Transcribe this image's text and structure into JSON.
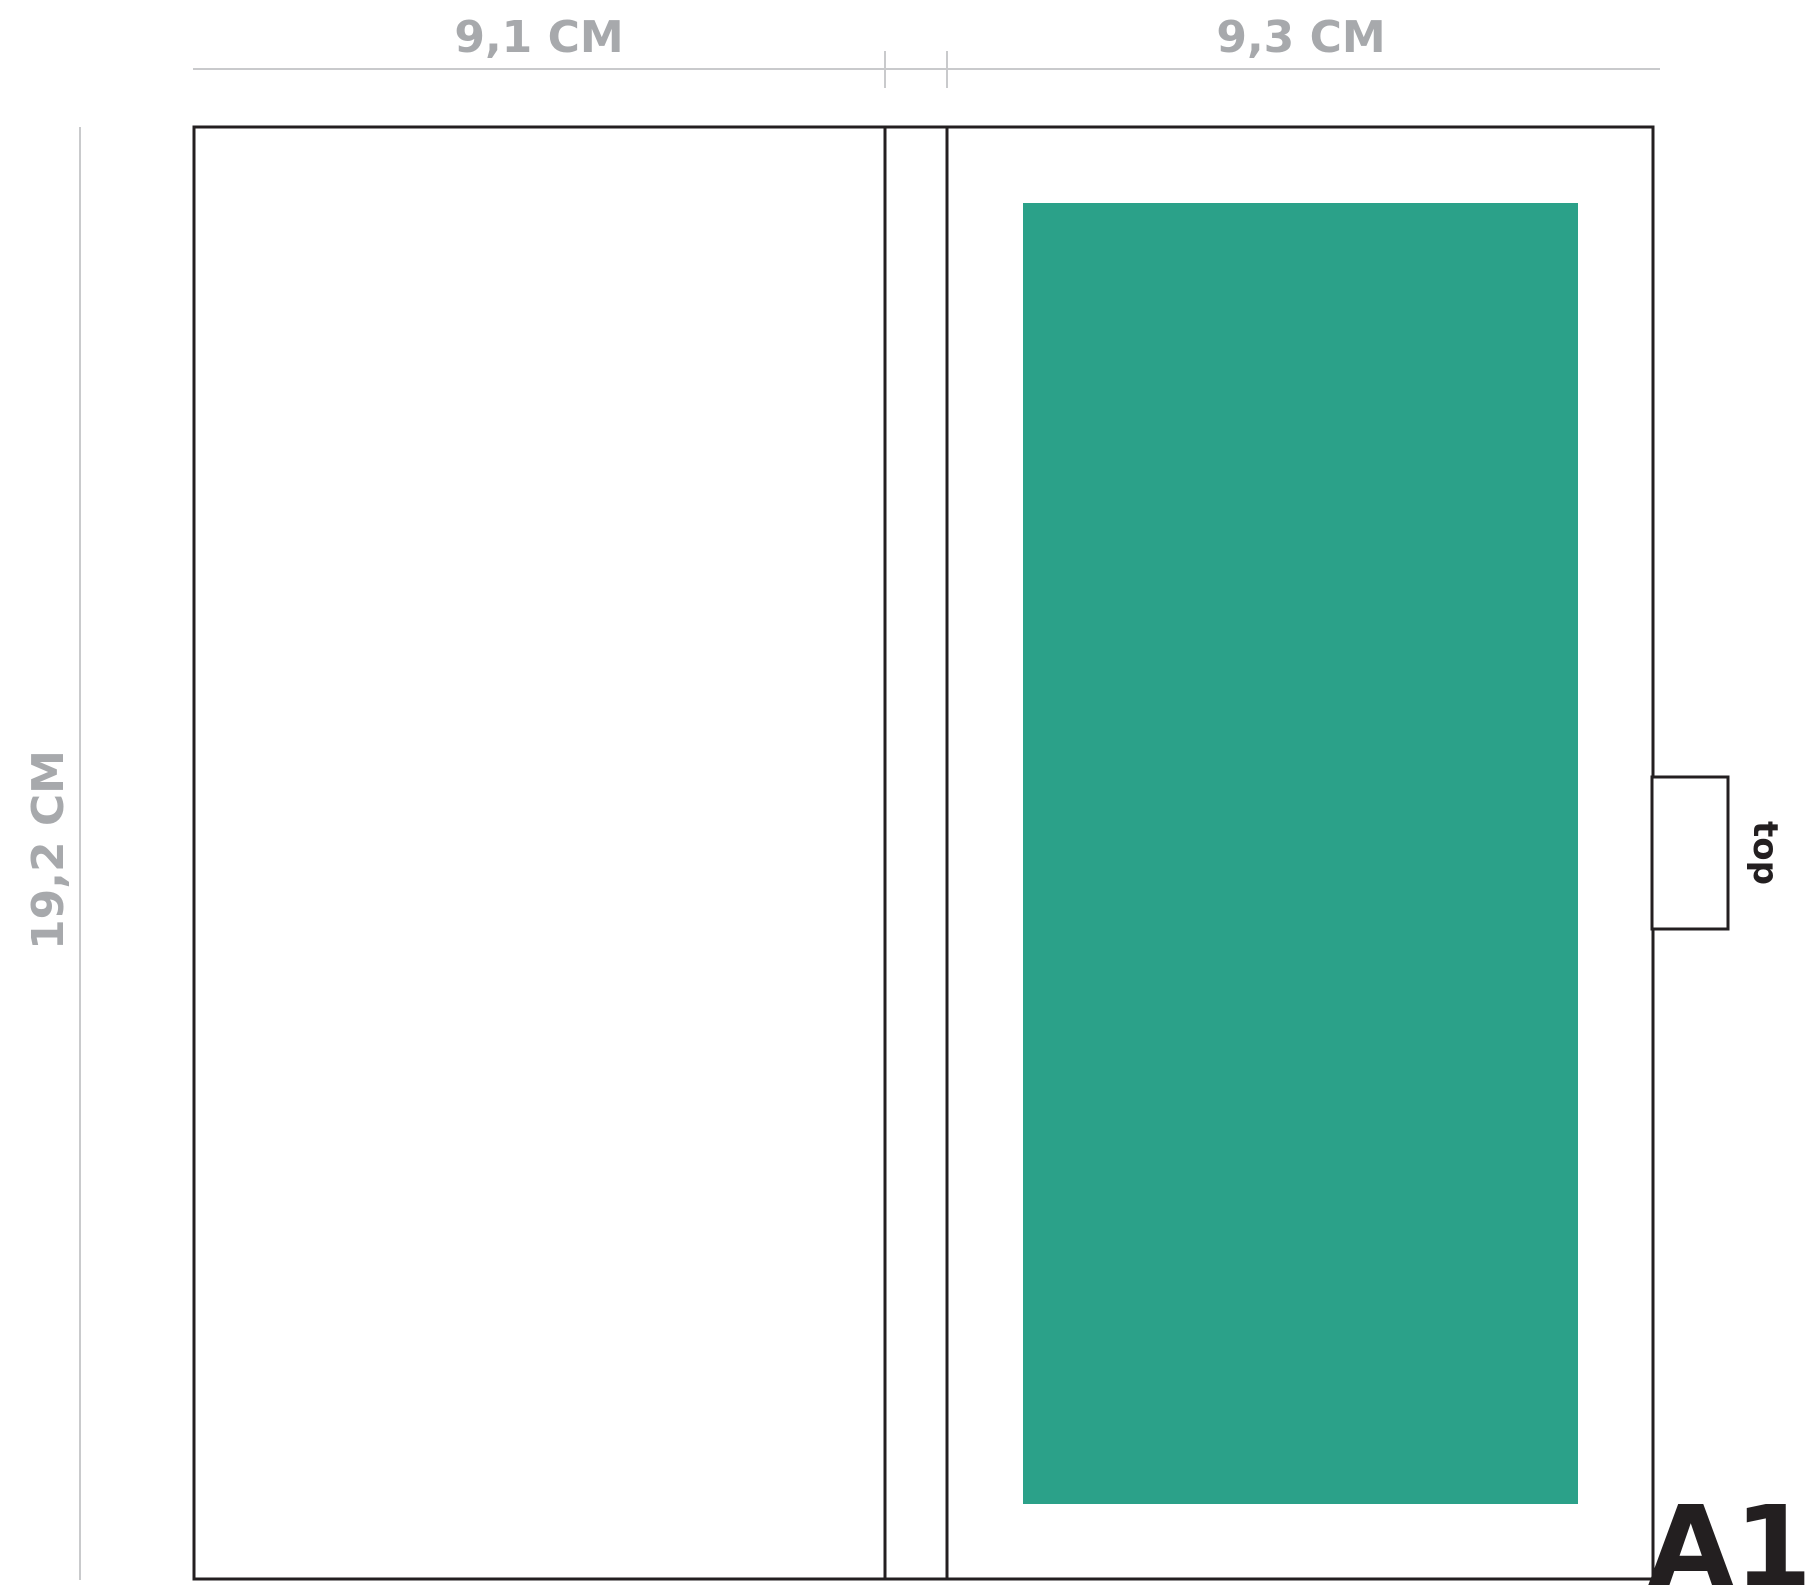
{
  "dimensions": {
    "left_width": "9,1 CM",
    "right_width": "9,3 CM",
    "height": "19,2 CM"
  },
  "tab_label": "top",
  "template_code": "A1",
  "colors": {
    "print_area": "#2ba189",
    "outline": "#231f20",
    "dimension": "#a7a9ac"
  }
}
